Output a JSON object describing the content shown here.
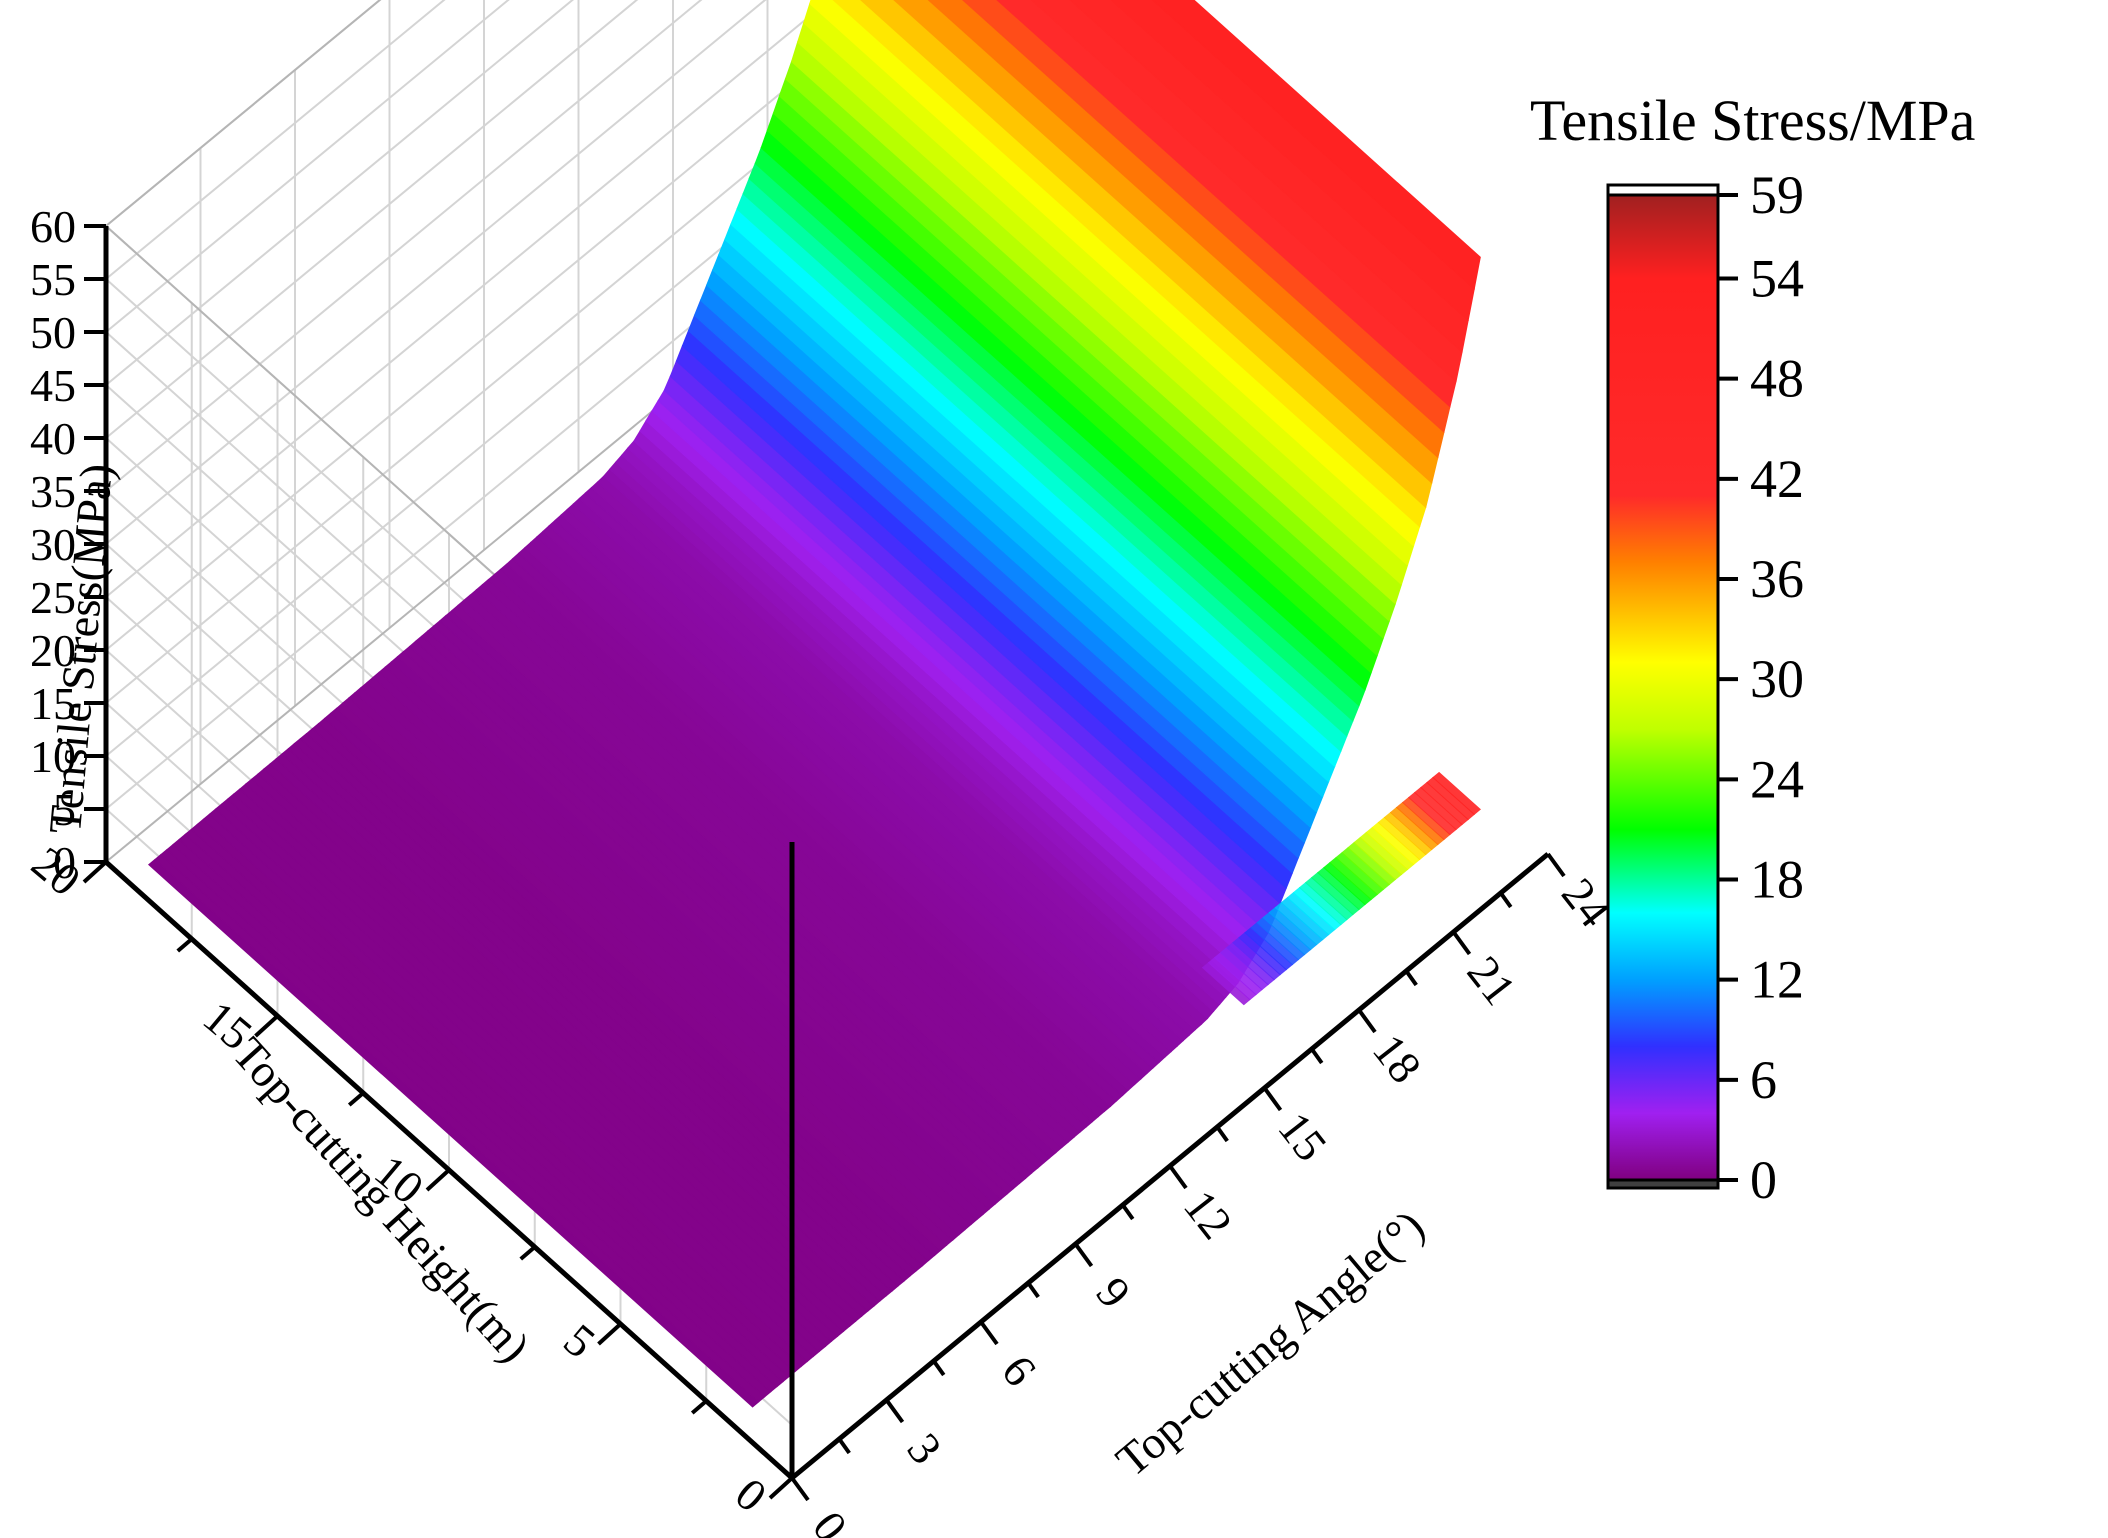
{
  "chart_data": {
    "type": "surface3d",
    "title": "",
    "x_axis": {
      "label": "Top-cutting Angle(°)",
      "ticks": [
        0,
        3,
        6,
        9,
        12,
        15,
        18,
        21,
        24
      ],
      "range": [
        0,
        24
      ]
    },
    "y_axis": {
      "label": "Top-cutting Height(m)",
      "ticks": [
        0,
        5,
        10,
        15,
        20
      ],
      "range": [
        0,
        20
      ]
    },
    "z_axis": {
      "label": "Tensile Stress(MPa)",
      "ticks": [
        0,
        5,
        10,
        15,
        20,
        25,
        30,
        35,
        40,
        45,
        50,
        55,
        60
      ],
      "range": [
        0,
        60
      ]
    },
    "colorbar": {
      "title": "Tensile Stress/MPa",
      "ticks": [
        0,
        6,
        12,
        18,
        24,
        30,
        36,
        42,
        48,
        54,
        59
      ],
      "range": [
        0,
        59
      ],
      "stops": [
        {
          "value": 0,
          "color": "#800080"
        },
        {
          "value": 4,
          "color": "#a020f0"
        },
        {
          "value": 8,
          "color": "#3030ff"
        },
        {
          "value": 12,
          "color": "#00a0ff"
        },
        {
          "value": 16,
          "color": "#00ffff"
        },
        {
          "value": 21,
          "color": "#00ff00"
        },
        {
          "value": 27,
          "color": "#c0ff00"
        },
        {
          "value": 31,
          "color": "#ffff00"
        },
        {
          "value": 37,
          "color": "#ff8000"
        },
        {
          "value": 41,
          "color": "#ff2a2a"
        },
        {
          "value": 54,
          "color": "#ff2020"
        },
        {
          "value": 59,
          "color": "#a02020"
        }
      ]
    },
    "surface": {
      "description_values": "stress rises with angle, near zero below ~16°",
      "profile_angle": [
        0,
        6,
        12,
        15,
        16,
        17,
        18,
        19,
        20,
        21,
        22,
        23,
        24
      ],
      "profile_stress": [
        0.3,
        0.4,
        0.8,
        1.5,
        2.5,
        5,
        10,
        15,
        20,
        26,
        33,
        43,
        56
      ]
    },
    "grid": true
  }
}
